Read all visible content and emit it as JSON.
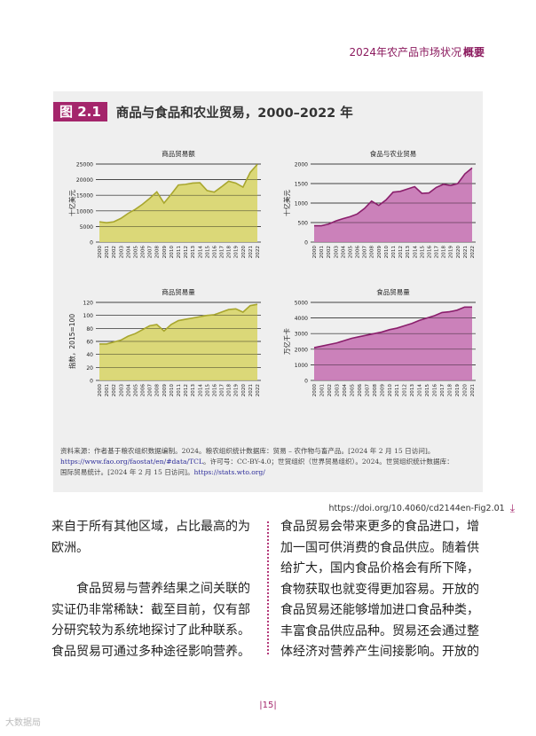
{
  "header": {
    "title": "2024年农产品市场状况",
    "section": "概要"
  },
  "figure": {
    "badge": "图 2.1",
    "title": "商品与食品和农业贸易，2000–2022 年"
  },
  "chart_data": [
    {
      "type": "area",
      "title": "商品贸易额",
      "ylabel": "十亿美元",
      "x": [
        "2000",
        "2001",
        "2002",
        "2003",
        "2004",
        "2005",
        "2006",
        "2007",
        "2008",
        "2009",
        "2010",
        "2011",
        "2012",
        "2013",
        "2014",
        "2015",
        "2016",
        "2017",
        "2018",
        "2019",
        "2020",
        "2021",
        "2022"
      ],
      "values": [
        6500,
        6200,
        6500,
        7600,
        9200,
        10500,
        12100,
        14000,
        16100,
        12500,
        15300,
        18300,
        18500,
        18900,
        19000,
        16500,
        16000,
        17700,
        19500,
        18900,
        17600,
        22300,
        24900
      ],
      "ylim": [
        0,
        25000
      ],
      "yticks": [
        "0",
        "5000",
        "10000",
        "15000",
        "20000",
        "25000"
      ],
      "color": "#d8d56a",
      "line_color": "#a8a62e"
    },
    {
      "type": "area",
      "title": "食品与农业贸易",
      "ylabel": "十亿美元",
      "x": [
        "2000",
        "2001",
        "2002",
        "2003",
        "2004",
        "2005",
        "2006",
        "2007",
        "2008",
        "2009",
        "2010",
        "2011",
        "2012",
        "2013",
        "2014",
        "2015",
        "2016",
        "2017",
        "2018",
        "2019",
        "2020",
        "2021",
        "2022"
      ],
      "values": [
        420,
        420,
        460,
        540,
        600,
        650,
        720,
        860,
        1050,
        940,
        1080,
        1280,
        1300,
        1360,
        1420,
        1250,
        1260,
        1400,
        1480,
        1450,
        1500,
        1750,
        1900
      ],
      "ylim": [
        0,
        2000
      ],
      "yticks": [
        "0",
        "500",
        "1000",
        "1500",
        "2000"
      ],
      "color": "#c674b4",
      "line_color": "#8a1f6c"
    },
    {
      "type": "area",
      "title": "商品贸易量",
      "ylabel": "指数，2015=100",
      "x": [
        "2000",
        "2001",
        "2002",
        "2003",
        "2004",
        "2005",
        "2006",
        "2007",
        "2008",
        "2009",
        "2010",
        "2011",
        "2012",
        "2013",
        "2014",
        "2015",
        "2016",
        "2017",
        "2018",
        "2019",
        "2020",
        "2021",
        "2022"
      ],
      "values": [
        56,
        56,
        59,
        62,
        68,
        72,
        78,
        84,
        86,
        76,
        86,
        92,
        94,
        96,
        98,
        100,
        101,
        105,
        109,
        110,
        105,
        115,
        117
      ],
      "ylim": [
        0,
        120
      ],
      "yticks": [
        "0",
        "20",
        "40",
        "60",
        "80",
        "100",
        "120"
      ],
      "color": "#d8d56a",
      "line_color": "#a8a62e"
    },
    {
      "type": "area",
      "title": "食品贸易量",
      "ylabel": "万亿千卡",
      "x": [
        "2000",
        "2001",
        "2002",
        "2003",
        "2004",
        "2005",
        "2006",
        "2007",
        "2008",
        "2009",
        "2010",
        "2011",
        "2012",
        "2013",
        "2014",
        "2015",
        "2016",
        "2017",
        "2018",
        "2019",
        "2020",
        "2021"
      ],
      "values": [
        2100,
        2200,
        2300,
        2400,
        2550,
        2700,
        2800,
        2900,
        3000,
        3100,
        3250,
        3350,
        3500,
        3650,
        3850,
        4000,
        4150,
        4350,
        4400,
        4500,
        4700,
        4700
      ],
      "ylim": [
        0,
        5000
      ],
      "yticks": [
        "0",
        "1000",
        "2000",
        "3000",
        "4000",
        "5000"
      ],
      "color": "#c674b4",
      "line_color": "#8a1f6c"
    }
  ],
  "source": {
    "line1": "资料来源：作者基于粮农组织数据编制。2024。粮农组织统计数据库：贸易 – 农作物与畜产品。[2024 年 2 月 15 日访问]。",
    "link1": "https://www.fao.org/faostat/en/#data/TCL",
    "line2": "。许可号：CC-BY-4.0；世贸组织（世界贸易组织）。2024。世贸组织统计数据库：",
    "line3": "国际贸易统计。[2024 年 2 月 15 日访问]。",
    "link2": "https://stats.wto.org/"
  },
  "doi": "https://doi.org/10.4060/cd2144en-Fig2.01",
  "body": {
    "left_p1": "来自于所有其他区域，占比最高的为欧洲。",
    "left_p2": "食品贸易与营养结果之间关联的实证仍非常稀缺：截至目前，仅有部分研究较为系统地探讨了此种联系。食品贸易可通过多种途径影响营养。",
    "right_p1": "食品贸易会带来更多的食品进口，增加一国可供消费的食品供应。随着供给扩大，国内食品价格会有所下降，食物获取也就变得更加容易。开放的食品贸易还能够增加进口食品种类，丰富食品供应品种。贸易还会通过整体经济对营养产生间接影响。开放的"
  },
  "page_number": "15",
  "watermark": "大数据局"
}
